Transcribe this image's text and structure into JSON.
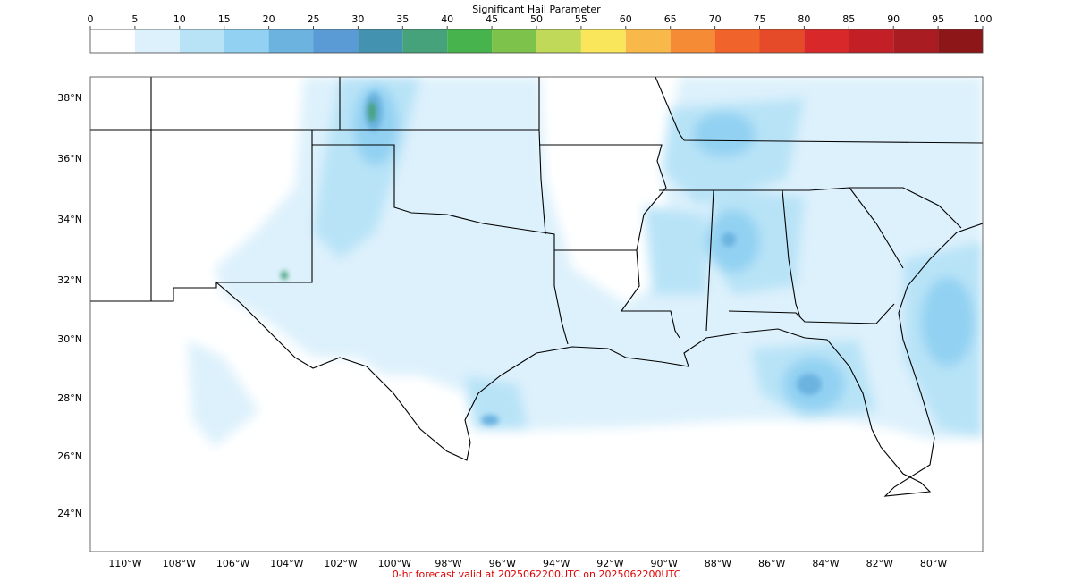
{
  "colorbar": {
    "title": "Significant Hail Parameter",
    "ticks": [
      0,
      5,
      10,
      15,
      20,
      25,
      30,
      35,
      40,
      45,
      50,
      55,
      60,
      65,
      70,
      75,
      80,
      85,
      90,
      95,
      100
    ],
    "colors": [
      "#ffffff",
      "#ddf1fc",
      "#b8e3f7",
      "#92d1f2",
      "#6cb3e0",
      "#5a9bd5",
      "#4393b0",
      "#45a27a",
      "#46b34d",
      "#7dc24a",
      "#c0d959",
      "#f9e65a",
      "#f9b84a",
      "#f58b35",
      "#f0642b",
      "#e54b28",
      "#d9282a",
      "#c21f26",
      "#a81c22",
      "#8d1619"
    ]
  },
  "map": {
    "lat_labels": [
      "38°N",
      "36°N",
      "34°N",
      "32°N",
      "30°N",
      "28°N",
      "26°N",
      "24°N"
    ],
    "lon_labels": [
      "110°W",
      "108°W",
      "106°W",
      "104°W",
      "102°W",
      "100°W",
      "98°W",
      "96°W",
      "94°W",
      "92°W",
      "90°W",
      "88°W",
      "86°W",
      "84°W",
      "82°W",
      "80°W"
    ]
  },
  "footer": "0-hr forecast valid at 2025062200UTC on 2025062200UTC"
}
